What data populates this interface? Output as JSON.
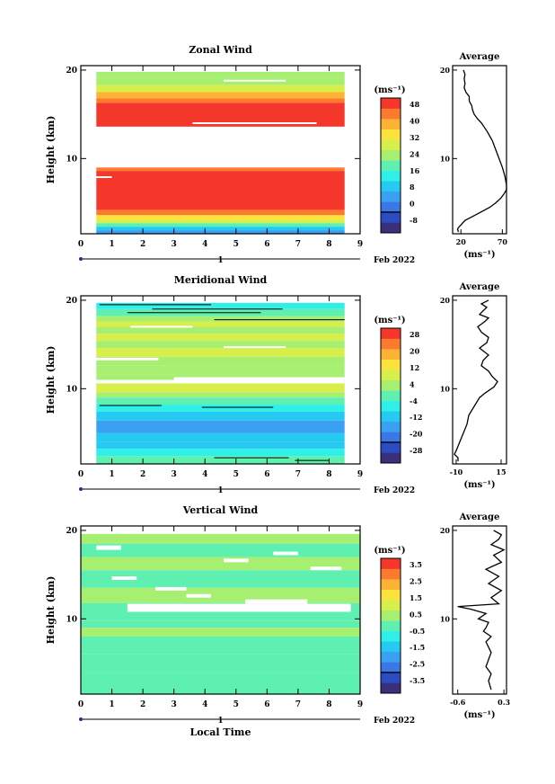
{
  "chart_data": [
    {
      "type": "heatmap",
      "title": "Zonal Wind",
      "xlabel": "",
      "ylabel": "Height (km)",
      "xlim": [
        0,
        9
      ],
      "ylim": [
        1.5,
        20.5
      ],
      "x_ticks": [
        "0",
        "1",
        "2",
        "3",
        "4",
        "5",
        "6",
        "7",
        "8",
        "9"
      ],
      "y_ticks": [
        {
          "v": 10,
          "label": "10"
        },
        {
          "v": 20,
          "label": "20"
        }
      ],
      "date_axis": {
        "day_label": "1",
        "month_label": "Feb 2022"
      },
      "colorbar": {
        "unit_label": "(ms⁻¹)",
        "ticks": [
          "-8",
          "0",
          "8",
          "16",
          "24",
          "32",
          "40",
          "48"
        ],
        "min": -12,
        "max": 52,
        "zero_line": 2,
        "colors": [
          "#3a2f7a",
          "#2c4cc4",
          "#3a78e6",
          "#3aa0f2",
          "#26c9f0",
          "#2ff0e8",
          "#5ef0b0",
          "#a6ef70",
          "#d8ee4a",
          "#fbe23c",
          "#fcb232",
          "#fc7a2c",
          "#f4362b"
        ]
      },
      "bands": [
        {
          "y0": 19.1,
          "y1": 19.8,
          "x0": 0.5,
          "x1": 8.5,
          "level": 25
        },
        {
          "y0": 18.3,
          "y1": 19.1,
          "x0": 0.5,
          "x1": 8.5,
          "level": 27
        },
        {
          "y0": 17.5,
          "y1": 18.3,
          "x0": 0.5,
          "x1": 8.5,
          "level": 31
        },
        {
          "y0": 16.8,
          "y1": 17.5,
          "x0": 0.5,
          "x1": 8.5,
          "level": 38
        },
        {
          "y0": 16.3,
          "y1": 16.8,
          "x0": 0.5,
          "x1": 8.5,
          "level": 46
        },
        {
          "y0": 13.6,
          "y1": 16.3,
          "x0": 0.5,
          "x1": 8.5,
          "level": 52
        },
        {
          "y0": 8.6,
          "y1": 9.0,
          "x0": 0.5,
          "x1": 8.5,
          "level": 46
        },
        {
          "y0": 4.2,
          "y1": 8.6,
          "x0": 0.5,
          "x1": 8.5,
          "level": 52
        },
        {
          "y0": 3.6,
          "y1": 4.2,
          "x0": 0.5,
          "x1": 8.5,
          "level": 44
        },
        {
          "y0": 3.1,
          "y1": 3.6,
          "x0": 0.5,
          "x1": 8.5,
          "level": 36
        },
        {
          "y0": 2.7,
          "y1": 3.1,
          "x0": 0.5,
          "x1": 8.5,
          "level": 28
        },
        {
          "y0": 2.3,
          "y1": 2.7,
          "x0": 0.5,
          "x1": 8.5,
          "level": 20
        },
        {
          "y0": 1.9,
          "y1": 2.3,
          "x0": 0.5,
          "x1": 8.5,
          "level": 12
        },
        {
          "y0": 1.5,
          "y1": 1.9,
          "x0": 0.5,
          "x1": 8.5,
          "level": 4
        }
      ],
      "gaps": [
        {
          "y0": 9.0,
          "y1": 13.6,
          "x0": 0.5,
          "x1": 8.5
        },
        {
          "y0": 13.9,
          "y1": 14.1,
          "x0": 3.6,
          "x1": 7.6
        },
        {
          "y0": 18.7,
          "y1": 18.9,
          "x0": 4.6,
          "x1": 6.6
        },
        {
          "y0": 7.8,
          "y1": 8.0,
          "x0": 0.5,
          "x1": 1.0
        }
      ],
      "profile": {
        "title": "Average",
        "unit_label": "(ms⁻¹)",
        "xlim": [
          10,
          75
        ],
        "x_ticks": [
          "20",
          "70"
        ],
        "x_tick_values": [
          20,
          70
        ],
        "x": [
          17,
          16,
          17,
          20,
          25,
          35,
          45,
          55,
          62,
          68,
          72,
          75,
          75,
          74,
          73,
          70,
          62,
          58,
          52,
          45,
          40,
          36,
          34,
          33,
          30,
          30,
          26,
          24,
          25,
          24,
          25,
          23
        ],
        "y": [
          1.7,
          2.0,
          2.2,
          2.5,
          3.0,
          3.5,
          4.0,
          4.5,
          5.0,
          5.5,
          6.0,
          6.5,
          7.0,
          7.5,
          8.0,
          9.0,
          11.0,
          12.0,
          13.0,
          14.0,
          14.5,
          15.0,
          15.5,
          16.0,
          16.5,
          17.0,
          17.5,
          18.0,
          18.5,
          19.0,
          19.5,
          20.0
        ]
      }
    },
    {
      "type": "heatmap",
      "title": "Meridional Wind",
      "xlabel": "",
      "ylabel": "Height (km)",
      "xlim": [
        0,
        9
      ],
      "ylim": [
        1.5,
        20.5
      ],
      "x_ticks": [
        "0",
        "1",
        "2",
        "3",
        "4",
        "5",
        "6",
        "7",
        "8",
        "9"
      ],
      "y_ticks": [
        {
          "v": 10,
          "label": "10"
        },
        {
          "v": 20,
          "label": "20"
        }
      ],
      "date_axis": {
        "day_label": "1",
        "month_label": "Feb 2022"
      },
      "colorbar": {
        "unit_label": "(ms⁻¹)",
        "ticks": [
          "-28",
          "-20",
          "-12",
          "-4",
          "4",
          "12",
          "20",
          "28"
        ],
        "min": -32,
        "max": 32,
        "zero_line": 2,
        "colors": [
          "#3a2f7a",
          "#2c4cc4",
          "#3a78e6",
          "#3aa0f2",
          "#26c9f0",
          "#2ff0e8",
          "#5ef0b0",
          "#a6ef70",
          "#d8ee4a",
          "#fbe23c",
          "#fcb232",
          "#fc7a2c",
          "#f4362b"
        ]
      },
      "bands": [
        {
          "y0": 19.0,
          "y1": 19.7,
          "x0": 0.5,
          "x1": 8.5,
          "level": -3
        },
        {
          "y0": 18.2,
          "y1": 19.0,
          "x0": 0.5,
          "x1": 8.5,
          "level": 2
        },
        {
          "y0": 17.6,
          "y1": 18.2,
          "x0": 0.5,
          "x1": 8.5,
          "level": 6
        },
        {
          "y0": 17.0,
          "y1": 17.6,
          "x0": 0.5,
          "x1": 8.5,
          "level": 8
        },
        {
          "y0": 16.2,
          "y1": 17.0,
          "x0": 0.5,
          "x1": 8.5,
          "level": 4
        },
        {
          "y0": 15.4,
          "y1": 16.2,
          "x0": 0.5,
          "x1": 8.5,
          "level": 9
        },
        {
          "y0": 14.6,
          "y1": 15.4,
          "x0": 0.5,
          "x1": 8.5,
          "level": 5
        },
        {
          "y0": 13.6,
          "y1": 14.6,
          "x0": 0.5,
          "x1": 8.5,
          "level": 8
        },
        {
          "y0": 12.6,
          "y1": 13.6,
          "x0": 0.5,
          "x1": 8.5,
          "level": 4
        },
        {
          "y0": 11.6,
          "y1": 12.6,
          "x0": 0.5,
          "x1": 8.5,
          "level": 6
        },
        {
          "y0": 10.6,
          "y1": 11.6,
          "x0": 0.5,
          "x1": 8.5,
          "level": 3
        },
        {
          "y0": 9.6,
          "y1": 10.6,
          "x0": 0.5,
          "x1": 8.5,
          "level": 9
        },
        {
          "y0": 9.0,
          "y1": 9.6,
          "x0": 0.5,
          "x1": 8.5,
          "level": 5
        },
        {
          "y0": 8.2,
          "y1": 9.0,
          "x0": 0.5,
          "x1": 8.5,
          "level": 0
        },
        {
          "y0": 7.4,
          "y1": 8.2,
          "x0": 0.5,
          "x1": 8.5,
          "level": -4
        },
        {
          "y0": 6.4,
          "y1": 7.4,
          "x0": 0.5,
          "x1": 8.5,
          "level": -10
        },
        {
          "y0": 5.0,
          "y1": 6.4,
          "x0": 0.5,
          "x1": 8.5,
          "level": -15
        },
        {
          "y0": 4.0,
          "y1": 5.0,
          "x0": 0.5,
          "x1": 8.5,
          "level": -12
        },
        {
          "y0": 3.2,
          "y1": 4.0,
          "x0": 0.5,
          "x1": 8.5,
          "level": -8
        },
        {
          "y0": 2.4,
          "y1": 3.2,
          "x0": 0.5,
          "x1": 8.5,
          "level": -4
        },
        {
          "y0": 1.5,
          "y1": 2.4,
          "x0": 0.5,
          "x1": 8.5,
          "level": -2
        }
      ],
      "gaps": [
        {
          "y0": 10.6,
          "y1": 11.0,
          "x0": 0.5,
          "x1": 8.5
        },
        {
          "y0": 11.0,
          "y1": 11.3,
          "x0": 3.0,
          "x1": 8.5
        },
        {
          "y0": 13.2,
          "y1": 13.5,
          "x0": 0.5,
          "x1": 2.5
        },
        {
          "y0": 14.6,
          "y1": 14.8,
          "x0": 4.6,
          "x1": 6.6
        },
        {
          "y0": 16.9,
          "y1": 17.1,
          "x0": 1.6,
          "x1": 3.6
        }
      ],
      "contours": [
        {
          "x0": 0.6,
          "x1": 4.2,
          "y": 19.5
        },
        {
          "x0": 2.3,
          "x1": 6.5,
          "y": 19.0
        },
        {
          "x0": 1.5,
          "x1": 5.8,
          "y": 18.6
        },
        {
          "x0": 4.3,
          "x1": 8.5,
          "y": 17.8
        },
        {
          "x0": 0.6,
          "x1": 2.6,
          "y": 8.1
        },
        {
          "x0": 3.9,
          "x1": 6.2,
          "y": 7.9
        },
        {
          "x0": 4.3,
          "x1": 6.7,
          "y": 2.2
        },
        {
          "x0": 6.9,
          "x1": 8.0,
          "y": 1.9
        }
      ],
      "profile": {
        "title": "Average",
        "unit_label": "(ms⁻¹)",
        "xlim": [
          -12,
          18
        ],
        "x_ticks": [
          "-10",
          "15"
        ],
        "x_tick_values": [
          -10,
          15
        ],
        "x": [
          -9,
          -9,
          -11,
          -10,
          -9,
          -8,
          -6,
          -4,
          -3,
          0,
          3,
          6,
          11,
          13,
          10,
          8,
          4,
          5,
          8,
          3,
          7,
          8,
          4,
          2,
          6,
          8,
          3,
          5,
          7,
          4,
          8
        ],
        "y": [
          1.8,
          2.2,
          2.6,
          3.0,
          3.5,
          4.0,
          5.0,
          6.0,
          7.0,
          8.0,
          9.0,
          9.5,
          10.2,
          10.8,
          11.4,
          12.0,
          12.6,
          13.2,
          13.8,
          14.6,
          15.2,
          15.8,
          16.4,
          17.0,
          17.6,
          18.0,
          18.4,
          18.8,
          19.2,
          19.6,
          20.0
        ]
      }
    },
    {
      "type": "heatmap",
      "title": "Vertical Wind",
      "xlabel": "Local Time",
      "ylabel": "Height (km)",
      "xlim": [
        0,
        9
      ],
      "ylim": [
        1.5,
        20.5
      ],
      "x_ticks": [
        "0",
        "1",
        "2",
        "3",
        "4",
        "5",
        "6",
        "7",
        "8",
        "9"
      ],
      "y_ticks": [
        {
          "v": 10,
          "label": "10"
        },
        {
          "v": 20,
          "label": "20"
        }
      ],
      "date_axis": {
        "day_label": "1",
        "month_label": "Feb 2022"
      },
      "colorbar": {
        "unit_label": "(ms⁻¹)",
        "ticks": [
          "-3.5",
          "-2.5",
          "-1.5",
          "-0.5",
          "0.5",
          "1.5",
          "2.5",
          "3.5"
        ],
        "min": -4,
        "max": 4,
        "zero_line": 2,
        "colors": [
          "#3a2f7a",
          "#2c4cc4",
          "#3a78e6",
          "#3aa0f2",
          "#26c9f0",
          "#2ff0e8",
          "#5ef0b0",
          "#a6ef70",
          "#d8ee4a",
          "#fbe23c",
          "#fcb232",
          "#fc7a2c",
          "#f4362b"
        ]
      },
      "bands": [
        {
          "y0": 18.5,
          "y1": 19.6,
          "x0": 0.0,
          "x1": 9.0,
          "level": 0.4
        },
        {
          "y0": 17.0,
          "y1": 18.5,
          "x0": 0.0,
          "x1": 9.0,
          "level": 0.2
        },
        {
          "y0": 15.5,
          "y1": 17.0,
          "x0": 0.0,
          "x1": 9.0,
          "level": 0.5
        },
        {
          "y0": 13.5,
          "y1": 15.5,
          "x0": 0.0,
          "x1": 9.0,
          "level": 0.1
        },
        {
          "y0": 11.8,
          "y1": 13.5,
          "x0": 0.0,
          "x1": 9.0,
          "level": 0.4
        },
        {
          "y0": 10.8,
          "y1": 11.8,
          "x0": 0.0,
          "x1": 9.0,
          "level": 0.1
        },
        {
          "y0": 9.8,
          "y1": 10.8,
          "x0": 0.0,
          "x1": 9.0,
          "level": -0.3
        },
        {
          "y0": 9.0,
          "y1": 9.8,
          "x0": 0.0,
          "x1": 9.0,
          "level": 0.0
        },
        {
          "y0": 8.0,
          "y1": 9.0,
          "x0": 0.0,
          "x1": 9.0,
          "level": 0.4
        },
        {
          "y0": 6.0,
          "y1": 8.0,
          "x0": 0.0,
          "x1": 9.0,
          "level": 0.1
        },
        {
          "y0": 4.0,
          "y1": 6.0,
          "x0": 0.0,
          "x1": 9.0,
          "level": 0.2
        },
        {
          "y0": 1.5,
          "y1": 4.0,
          "x0": 0.0,
          "x1": 9.0,
          "level": 0.1
        }
      ],
      "gaps": [
        {
          "y0": 10.8,
          "y1": 11.7,
          "x0": 1.5,
          "x1": 8.7
        },
        {
          "y0": 11.7,
          "y1": 12.2,
          "x0": 5.3,
          "x1": 7.3
        },
        {
          "y0": 17.8,
          "y1": 18.3,
          "x0": 0.5,
          "x1": 1.3
        },
        {
          "y0": 17.2,
          "y1": 17.6,
          "x0": 6.2,
          "x1": 7.0
        },
        {
          "y0": 16.4,
          "y1": 16.8,
          "x0": 4.6,
          "x1": 5.4
        },
        {
          "y0": 15.5,
          "y1": 15.9,
          "x0": 7.4,
          "x1": 8.4
        },
        {
          "y0": 14.4,
          "y1": 14.8,
          "x0": 1.0,
          "x1": 1.8
        },
        {
          "y0": 13.2,
          "y1": 13.6,
          "x0": 2.4,
          "x1": 3.4
        },
        {
          "y0": 12.4,
          "y1": 12.8,
          "x0": 3.4,
          "x1": 4.2
        }
      ],
      "profile": {
        "title": "Average",
        "unit_label": "(ms⁻¹)",
        "xlim": [
          -0.7,
          0.35
        ],
        "x_ticks": [
          "-0.6",
          "0.3"
        ],
        "x_tick_values": [
          -0.6,
          0.3
        ],
        "x": [
          0.05,
          0.0,
          0.05,
          -0.05,
          0.0,
          0.05,
          0.0,
          -0.05,
          0.05,
          -0.1,
          -0.05,
          0.0,
          -0.2,
          -0.05,
          -0.35,
          -0.6,
          0.2,
          0.05,
          0.25,
          0.0,
          0.2,
          -0.05,
          0.25,
          0.1,
          0.3,
          0.05,
          0.2,
          0.25,
          0.1
        ],
        "y": [
          2.0,
          3.0,
          3.8,
          4.6,
          5.4,
          6.2,
          6.8,
          7.4,
          8.0,
          8.6,
          9.0,
          9.6,
          10.0,
          10.6,
          11.1,
          11.4,
          11.7,
          12.4,
          13.2,
          14.0,
          14.8,
          15.6,
          16.4,
          17.2,
          17.8,
          18.4,
          19.0,
          19.5,
          20.0
        ]
      }
    }
  ]
}
